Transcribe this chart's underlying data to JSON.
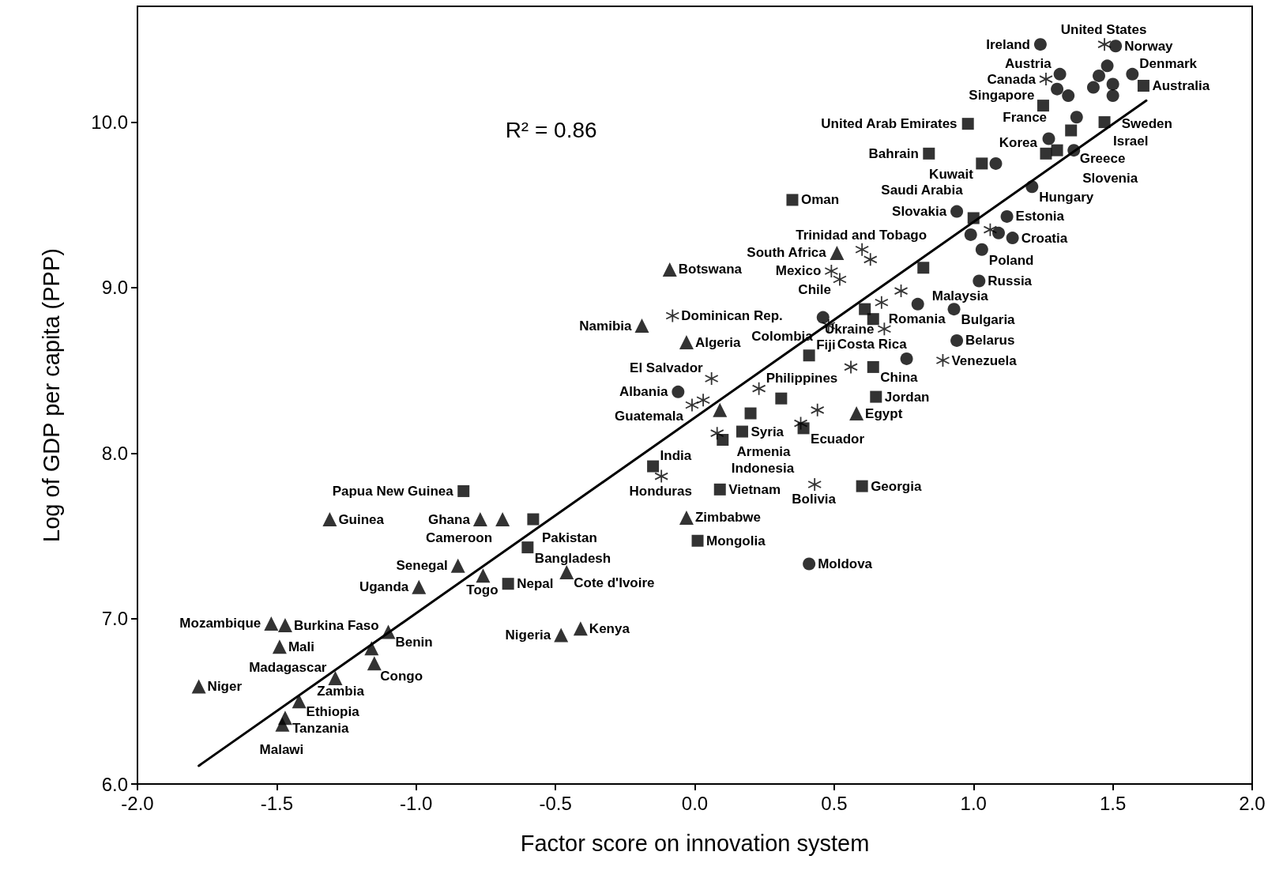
{
  "chart_data": {
    "type": "scatter",
    "xlabel": "Factor score on innovation system",
    "ylabel": "Log of GDP per capita (PPP)",
    "xlim": [
      -2,
      2
    ],
    "ylim": [
      6,
      10.7
    ],
    "xticks": [
      {
        "value": -2,
        "label": "-2.0"
      },
      {
        "value": -1.5,
        "label": "-1.5"
      },
      {
        "value": -1,
        "label": "-1.0"
      },
      {
        "value": -0.5,
        "label": "-0.5"
      },
      {
        "value": 0,
        "label": "0.0"
      },
      {
        "value": 0.5,
        "label": "0.5"
      },
      {
        "value": 1,
        "label": "1.0"
      },
      {
        "value": 1.5,
        "label": "1.5"
      },
      {
        "value": 2,
        "label": "2.0"
      }
    ],
    "yticks": [
      {
        "value": 6,
        "label": "6.0"
      },
      {
        "value": 7,
        "label": "7.0"
      },
      {
        "value": 8,
        "label": "8.0"
      },
      {
        "value": 9,
        "label": "9.0"
      },
      {
        "value": 10,
        "label": "10.0"
      }
    ],
    "grid": false,
    "series": [
      {
        "type": "scatter",
        "marker": "triangle",
        "color": "#000000",
        "x": [
          -1.78,
          -1.48,
          -1.47,
          -1.42,
          -1.29,
          -1.15,
          -1.16,
          -1.1,
          -1.49,
          -1.52,
          -1.47,
          -1.31,
          -0.99,
          -0.85,
          -0.76,
          -0.77,
          -0.69,
          -0.48,
          -0.41,
          -0.46,
          -0.03,
          -0.09,
          -0.19,
          -0.03,
          0.09,
          0.51,
          0.58
        ],
        "values": [
          6.59,
          6.36,
          6.4,
          6.5,
          6.64,
          6.73,
          6.82,
          6.92,
          6.83,
          6.97,
          6.96,
          7.6,
          7.19,
          7.32,
          7.26,
          7.6,
          7.6,
          6.9,
          6.94,
          7.28,
          7.61,
          9.11,
          8.77,
          8.67,
          8.26,
          9.21,
          8.24
        ]
      },
      {
        "type": "scatter",
        "marker": "square",
        "color": "#000000",
        "x": [
          -0.83,
          -0.58,
          -0.6,
          -0.67,
          -0.15,
          0.01,
          0.09,
          0.1,
          0.17,
          0.2,
          0.31,
          0.39,
          0.6,
          0.65,
          0.64,
          0.41,
          0.61,
          0.64,
          0.82,
          1.0,
          0.35,
          0.84,
          1.03,
          0.98,
          1.25,
          1.26,
          1.35,
          1.3,
          1.47,
          1.61
        ],
        "values": [
          7.77,
          7.6,
          7.43,
          7.21,
          7.92,
          7.47,
          7.78,
          8.08,
          8.13,
          8.24,
          8.33,
          8.15,
          7.8,
          8.34,
          8.52,
          8.59,
          8.87,
          8.81,
          9.12,
          9.42,
          9.53,
          9.81,
          9.75,
          9.99,
          10.1,
          9.81,
          9.95,
          9.83,
          10.0,
          10.22
        ]
      },
      {
        "type": "scatter",
        "marker": "cross",
        "color": "#000000",
        "x": [
          1.47,
          1.26,
          0.6,
          0.63,
          0.49,
          0.52,
          0.48,
          0.67,
          0.74,
          0.68,
          0.89,
          0.56,
          0.44,
          0.43,
          0.38,
          0.23,
          0.06,
          -0.01,
          0.03,
          0.08,
          -0.12,
          -0.08,
          1.06
        ],
        "values": [
          10.47,
          10.26,
          9.23,
          9.17,
          9.1,
          9.05,
          8.77,
          8.91,
          8.98,
          8.75,
          8.56,
          8.52,
          8.26,
          7.81,
          8.18,
          8.39,
          8.45,
          8.29,
          8.32,
          8.12,
          7.86,
          8.83,
          9.35
        ]
      },
      {
        "type": "scatter",
        "marker": "circle",
        "color": "#000000",
        "x": [
          1.24,
          1.51,
          1.31,
          1.57,
          1.3,
          1.34,
          1.48,
          1.45,
          1.43,
          1.5,
          1.5,
          1.37,
          1.27,
          1.36,
          1.08,
          1.21,
          0.94,
          1.12,
          0.99,
          1.09,
          1.14,
          1.03,
          1.02,
          0.8,
          0.93,
          0.94,
          0.76,
          -0.06,
          0.41,
          0.46
        ],
        "values": [
          10.47,
          10.46,
          10.29,
          10.29,
          10.2,
          10.16,
          10.34,
          10.28,
          10.21,
          10.23,
          10.16,
          10.03,
          9.9,
          9.83,
          9.75,
          9.61,
          9.46,
          9.43,
          9.32,
          9.33,
          9.3,
          9.23,
          9.04,
          8.9,
          8.87,
          8.68,
          8.57,
          8.37,
          7.33,
          8.82
        ]
      },
      {
        "type": "line",
        "color": "#000000",
        "x": [
          -1.78,
          1.62
        ],
        "values": [
          6.11,
          10.13
        ]
      }
    ],
    "annotations": [
      "R² = 0.86",
      {
        "text": "United States",
        "x": 1.47,
        "y": 10.47
      },
      {
        "text": "Ireland",
        "x": 1.24,
        "y": 10.47
      },
      {
        "text": "Norway",
        "x": 1.51,
        "y": 10.46
      },
      {
        "text": "Austria",
        "x": 1.31,
        "y": 10.29
      },
      {
        "text": "Denmark",
        "x": 1.57,
        "y": 10.29
      },
      {
        "text": "Canada",
        "x": 1.26,
        "y": 10.26
      },
      {
        "text": "Australia",
        "x": 1.61,
        "y": 10.22
      },
      {
        "text": "Sweden",
        "x": 1.5,
        "y": 10.16
      },
      {
        "text": "France",
        "x": 1.3,
        "y": 10.2
      },
      {
        "text": "Singapore",
        "x": 1.25,
        "y": 10.1
      },
      {
        "text": "United Arab Emirates",
        "x": 0.98,
        "y": 9.99
      },
      {
        "text": "Israel",
        "x": 1.47,
        "y": 10.0
      },
      {
        "text": "Greece",
        "x": 1.35,
        "y": 9.95
      },
      {
        "text": "Bahrain",
        "x": 0.84,
        "y": 9.81
      },
      {
        "text": "Korea",
        "x": 1.26,
        "y": 9.81
      },
      {
        "text": "Slovenia",
        "x": 1.36,
        "y": 9.83
      },
      {
        "text": "Kuwait",
        "x": 1.03,
        "y": 9.75
      },
      {
        "text": "Oman",
        "x": 0.35,
        "y": 9.53
      },
      {
        "text": "Hungary",
        "x": 1.21,
        "y": 9.61
      },
      {
        "text": "Slovakia",
        "x": 0.94,
        "y": 9.46
      },
      {
        "text": "Saudi Arabia",
        "x": 1.0,
        "y": 9.42
      },
      {
        "text": "Estonia",
        "x": 1.12,
        "y": 9.43
      },
      {
        "text": "Croatia",
        "x": 1.14,
        "y": 9.3
      },
      {
        "text": "Trinidad and Tobago",
        "x": 0.6,
        "y": 9.23
      },
      {
        "text": "Poland",
        "x": 1.03,
        "y": 9.23
      },
      {
        "text": "South Africa",
        "x": 0.51,
        "y": 9.21
      },
      {
        "text": "Botswana",
        "x": -0.09,
        "y": 9.11
      },
      {
        "text": "Malaysia",
        "x": 0.82,
        "y": 9.12
      },
      {
        "text": "Mexico",
        "x": 0.49,
        "y": 9.1
      },
      {
        "text": "Chile",
        "x": 0.52,
        "y": 9.05
      },
      {
        "text": "Russia",
        "x": 1.02,
        "y": 9.04
      },
      {
        "text": "Costa Rica",
        "x": 0.48,
        "y": 8.77
      },
      {
        "text": "Dominican Rep.",
        "x": -0.08,
        "y": 8.83
      },
      {
        "text": "Romania",
        "x": 0.8,
        "y": 8.9
      },
      {
        "text": "Colombia",
        "x": 0.46,
        "y": 8.82
      },
      {
        "text": "Namibia",
        "x": -0.19,
        "y": 8.77
      },
      {
        "text": "Bulgaria",
        "x": 0.93,
        "y": 8.87
      },
      {
        "text": "Algeria",
        "x": -0.03,
        "y": 8.67
      },
      {
        "text": "Ukraine",
        "x": 0.68,
        "y": 8.75
      },
      {
        "text": "Belarus",
        "x": 0.94,
        "y": 8.68
      },
      {
        "text": "Fiji",
        "x": 0.41,
        "y": 8.59
      },
      {
        "text": "El Salvador",
        "x": 0.06,
        "y": 8.45
      },
      {
        "text": "Venezuela",
        "x": 0.89,
        "y": 8.56
      },
      {
        "text": "China",
        "x": 0.64,
        "y": 8.52
      },
      {
        "text": "Albania",
        "x": -0.06,
        "y": 8.37
      },
      {
        "text": "Philippines",
        "x": 0.23,
        "y": 8.39
      },
      {
        "text": "Jordan",
        "x": 0.65,
        "y": 8.34
      },
      {
        "text": "Guatemala",
        "x": -0.01,
        "y": 8.29
      },
      {
        "text": "Egypt",
        "x": 0.58,
        "y": 8.24
      },
      {
        "text": "Syria",
        "x": 0.17,
        "y": 8.13
      },
      {
        "text": "Ecuador",
        "x": 0.39,
        "y": 8.15
      },
      {
        "text": "Armenia",
        "x": 0.38,
        "y": 8.18
      },
      {
        "text": "India",
        "x": -0.15,
        "y": 7.92
      },
      {
        "text": "Indonesia",
        "x": 0.1,
        "y": 8.08
      },
      {
        "text": "Papua New Guinea",
        "x": -0.83,
        "y": 7.77
      },
      {
        "text": "Georgia",
        "x": 0.6,
        "y": 7.8
      },
      {
        "text": "Honduras",
        "x": -0.12,
        "y": 7.86
      },
      {
        "text": "Vietnam",
        "x": 0.09,
        "y": 7.78
      },
      {
        "text": "Bolivia",
        "x": 0.43,
        "y": 7.81
      },
      {
        "text": "Guinea",
        "x": -1.31,
        "y": 7.6
      },
      {
        "text": "Ghana",
        "x": -0.77,
        "y": 7.6
      },
      {
        "text": "Pakistan",
        "x": -0.58,
        "y": 7.6
      },
      {
        "text": "Zimbabwe",
        "x": -0.03,
        "y": 7.61
      },
      {
        "text": "Cameroon",
        "x": -0.69,
        "y": 7.6
      },
      {
        "text": "Bangladesh",
        "x": -0.6,
        "y": 7.43
      },
      {
        "text": "Mongolia",
        "x": 0.01,
        "y": 7.47
      },
      {
        "text": "Senegal",
        "x": -0.85,
        "y": 7.32
      },
      {
        "text": "Uganda",
        "x": -0.99,
        "y": 7.19
      },
      {
        "text": "Cote d'Ivoire",
        "x": -0.46,
        "y": 7.28
      },
      {
        "text": "Togo",
        "x": -0.76,
        "y": 7.26
      },
      {
        "text": "Nepal",
        "x": -0.67,
        "y": 7.21
      },
      {
        "text": "Moldova",
        "x": 0.41,
        "y": 7.33
      },
      {
        "text": "Mozambique",
        "x": -1.52,
        "y": 6.97
      },
      {
        "text": "Burkina Faso",
        "x": -1.47,
        "y": 6.96
      },
      {
        "text": "Mali",
        "x": -1.49,
        "y": 6.83
      },
      {
        "text": "Benin",
        "x": -1.1,
        "y": 6.92
      },
      {
        "text": "Kenya",
        "x": -0.41,
        "y": 6.94
      },
      {
        "text": "Congo",
        "x": -1.16,
        "y": 6.82
      },
      {
        "text": "Nigeria",
        "x": -0.48,
        "y": 6.9
      },
      {
        "text": "Zambia",
        "x": -1.15,
        "y": 6.73
      },
      {
        "text": "Niger",
        "x": -1.78,
        "y": 6.59
      },
      {
        "text": "Madagascar",
        "x": -1.29,
        "y": 6.64
      },
      {
        "text": "Ethiopia",
        "x": -1.42,
        "y": 6.5
      },
      {
        "text": "Tanzania",
        "x": -1.47,
        "y": 6.4
      },
      {
        "text": "Malawi",
        "x": -1.48,
        "y": 6.36
      }
    ]
  }
}
